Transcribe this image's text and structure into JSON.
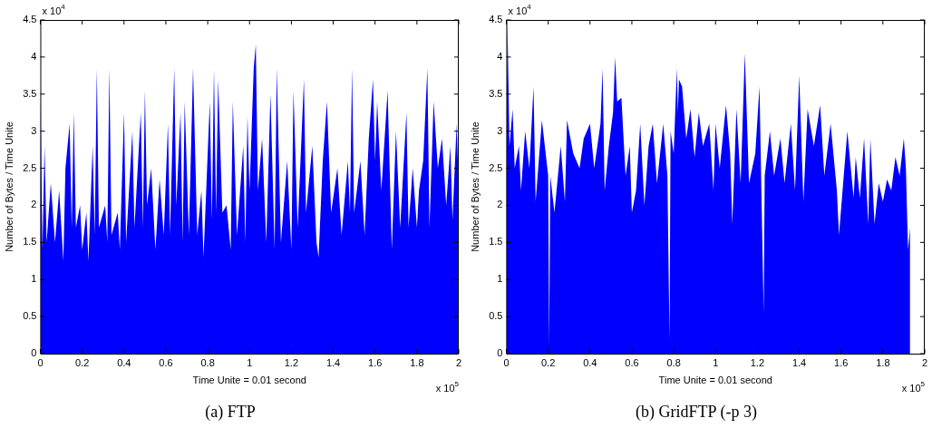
{
  "chart_data": [
    {
      "type": "area",
      "title": "(a) FTP",
      "xlabel": "Time Unite = 0.01 second",
      "ylabel": "Number of Bytes / Time Unite",
      "annotations": [
        "x 10$^{4}$",
        "x 10$^{5}$"
      ],
      "xlim": [
        0,
        2
      ],
      "xticks": [
        0,
        0.2,
        0.4,
        0.6,
        0.8,
        1,
        1.2,
        1.4,
        1.6,
        1.8,
        2
      ],
      "ylim": [
        0,
        4.5
      ],
      "yticks": [
        0,
        0.5,
        1,
        1.5,
        2,
        2.5,
        3,
        3.5,
        4,
        4.5
      ],
      "series": [
        {
          "color": "#0000ff",
          "x": [
            0,
            0.01,
            0.02,
            0.03,
            0.05,
            0.07,
            0.09,
            0.11,
            0.12,
            0.14,
            0.15,
            0.16,
            0.17,
            0.19,
            0.2,
            0.22,
            0.23,
            0.25,
            0.26,
            0.27,
            0.28,
            0.31,
            0.32,
            0.33,
            0.34,
            0.37,
            0.38,
            0.4,
            0.41,
            0.44,
            0.45,
            0.48,
            0.49,
            0.5,
            0.51,
            0.53,
            0.55,
            0.57,
            0.59,
            0.61,
            0.62,
            0.64,
            0.65,
            0.67,
            0.68,
            0.69,
            0.71,
            0.73,
            0.75,
            0.77,
            0.78,
            0.81,
            0.82,
            0.83,
            0.84,
            0.85,
            0.87,
            0.89,
            0.91,
            0.92,
            0.94,
            0.97,
            0.98,
            0.99,
            1,
            1.02,
            1.03,
            1.04,
            1.06,
            1.08,
            1.1,
            1.12,
            1.13,
            1.15,
            1.18,
            1.2,
            1.21,
            1.23,
            1.26,
            1.27,
            1.3,
            1.32,
            1.33,
            1.35,
            1.37,
            1.39,
            1.42,
            1.44,
            1.47,
            1.48,
            1.49,
            1.5,
            1.53,
            1.55,
            1.57,
            1.59,
            1.6,
            1.61,
            1.63,
            1.66,
            1.68,
            1.7,
            1.72,
            1.75,
            1.76,
            1.78,
            1.8,
            1.81,
            1.83,
            1.85,
            1.86,
            1.88,
            1.9,
            1.92,
            1.94,
            1.96,
            1.97,
            1.99,
            2
          ],
          "values": [
            3.55,
            1.4,
            2.8,
            1.5,
            2.3,
            1.5,
            2.2,
            1.25,
            2.5,
            3.1,
            1.7,
            3.25,
            1.7,
            2,
            1.4,
            1.9,
            1.25,
            2.8,
            1.6,
            3.85,
            1.7,
            2,
            1.5,
            3.85,
            1.6,
            1.9,
            1.4,
            3.25,
            1.5,
            3,
            1.7,
            3.25,
            1.7,
            3.55,
            2,
            2.5,
            1.4,
            2.35,
            1.6,
            3.1,
            1.6,
            3.85,
            2,
            3.25,
            1.5,
            3.4,
            1.6,
            3.85,
            1.6,
            2.2,
            1.3,
            3.4,
            1.8,
            3.85,
            1.9,
            3.7,
            1.9,
            2,
            1.4,
            3.4,
            1.6,
            2.8,
            1.5,
            3.2,
            2.2,
            3.85,
            4.17,
            2.2,
            2.9,
            1.5,
            3.5,
            1.4,
            3.85,
            1.5,
            2.6,
            1.4,
            3.55,
            1.7,
            3.7,
            1.9,
            2.8,
            1.5,
            1.3,
            2.6,
            3.4,
            1.9,
            2.5,
            1.6,
            2.6,
            1.9,
            3.85,
            1.9,
            2.6,
            1.6,
            2.9,
            3.7,
            2.6,
            3.4,
            2.2,
            3.55,
            1.4,
            3,
            1.7,
            3.25,
            1.7,
            2.5,
            1.7,
            2.2,
            2.6,
            3.85,
            1.7,
            3.4,
            2.5,
            2.9,
            2,
            2.8,
            1.8,
            3.1,
            2.2
          ]
        }
      ]
    },
    {
      "type": "area",
      "title": "(b) GridFTP (-p 3)",
      "xlabel": "Time Unite = 0.01 second",
      "ylabel": "Number of Bytes / Time Unite",
      "annotations": [
        "x 10$^{4}$",
        "x 10$^{5}$"
      ],
      "xlim": [
        0,
        2
      ],
      "xticks": [
        0,
        0.2,
        0.4,
        0.6,
        0.8,
        1,
        1.2,
        1.4,
        1.6,
        1.8,
        2
      ],
      "ylim": [
        0,
        4.5
      ],
      "yticks": [
        0,
        0.5,
        1,
        1.5,
        2,
        2.5,
        3,
        3.5,
        4,
        4.5
      ],
      "series": [
        {
          "color": "#0000ff",
          "x": [
            0,
            0.005,
            0.01,
            0.015,
            0.03,
            0.04,
            0.06,
            0.07,
            0.09,
            0.11,
            0.13,
            0.14,
            0.17,
            0.2,
            0.205,
            0.21,
            0.23,
            0.26,
            0.28,
            0.29,
            0.32,
            0.35,
            0.37,
            0.4,
            0.42,
            0.45,
            0.46,
            0.47,
            0.49,
            0.51,
            0.52,
            0.53,
            0.55,
            0.57,
            0.59,
            0.6,
            0.62,
            0.64,
            0.66,
            0.68,
            0.7,
            0.72,
            0.75,
            0.77,
            0.78,
            0.785,
            0.8,
            0.815,
            0.82,
            0.825,
            0.84,
            0.86,
            0.88,
            0.9,
            0.92,
            0.94,
            0.97,
            0.99,
            1,
            1.02,
            1.05,
            1.07,
            1.08,
            1.1,
            1.12,
            1.14,
            1.16,
            1.19,
            1.21,
            1.23,
            1.235,
            1.26,
            1.28,
            1.31,
            1.33,
            1.36,
            1.38,
            1.4,
            1.42,
            1.44,
            1.47,
            1.5,
            1.52,
            1.55,
            1.58,
            1.59,
            1.61,
            1.63,
            1.66,
            1.67,
            1.69,
            1.71,
            1.73,
            1.74,
            1.76,
            1.78,
            1.8,
            1.82,
            1.84,
            1.86,
            1.88,
            1.9,
            1.91,
            1.92,
            1.93
          ],
          "values": [
            2.5,
            4.5,
            3.7,
            2.8,
            3.3,
            2.5,
            2.8,
            2.2,
            3,
            2.5,
            3.6,
            2.05,
            3.15,
            2.4,
            0.1,
            2.4,
            1.9,
            2.8,
            2.05,
            3.15,
            2.7,
            2.5,
            2.9,
            3.1,
            2.5,
            3.1,
            3.85,
            2.2,
            2.8,
            3.25,
            4,
            3.4,
            3.45,
            2.4,
            2.8,
            1.9,
            2.2,
            3.1,
            2,
            2.8,
            3.1,
            2.3,
            3.1,
            2.4,
            0.18,
            3,
            2.7,
            3.85,
            3.25,
            3.7,
            3.6,
            2.9,
            3.3,
            2.65,
            3.25,
            2.8,
            3.1,
            2.2,
            3.1,
            2.5,
            3.35,
            2.7,
            1.75,
            3.3,
            2.3,
            4.05,
            2.3,
            2.7,
            3.6,
            0.55,
            2.4,
            3,
            2.4,
            2.9,
            2.3,
            3.1,
            2.2,
            3.75,
            2.05,
            3.3,
            2.8,
            3.35,
            2.4,
            3.1,
            2.2,
            1.6,
            2.3,
            3,
            2.1,
            2.65,
            2.1,
            2.9,
            1.75,
            2.9,
            1.75,
            2.3,
            2.05,
            2.35,
            2.2,
            2.65,
            2.4,
            2.9,
            2.5,
            1.4,
            1.7
          ]
        }
      ]
    }
  ]
}
